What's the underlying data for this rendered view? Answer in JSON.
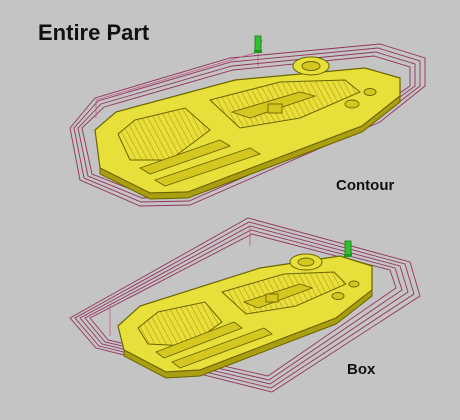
{
  "heading": "Entire Part",
  "views": [
    {
      "label": "Contour",
      "boundary": "contour"
    },
    {
      "label": "Box",
      "boundary": "box"
    }
  ],
  "colors": {
    "background": "#c4c4c4",
    "part_fill": "#e8e03a",
    "part_edge": "#6b6500",
    "toolpath": "#8b1a4a",
    "toolpath_light": "#c05a80",
    "tool": "#2fc42f"
  },
  "icons": [
    "tool-marker-icon"
  ]
}
